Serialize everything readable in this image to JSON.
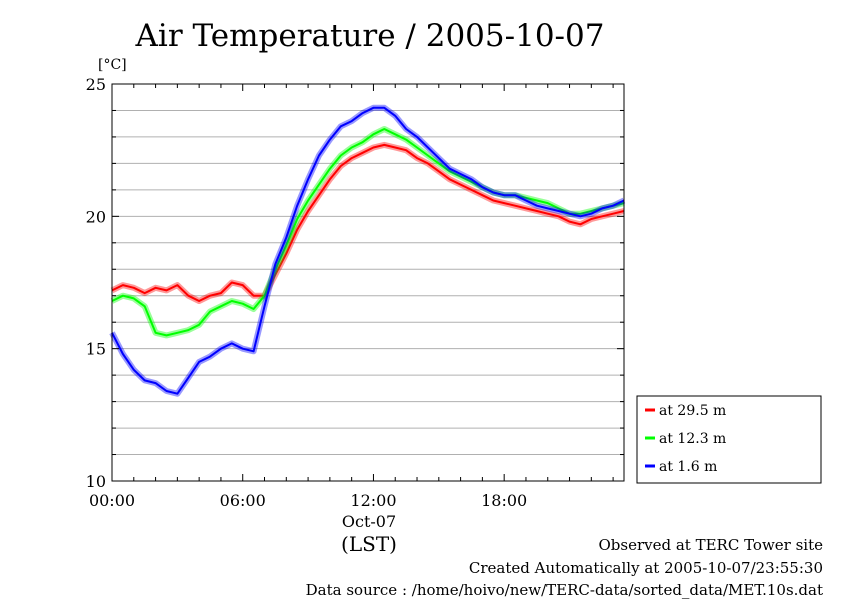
{
  "chart_data": {
    "type": "line",
    "title": "Air Temperature / 2005-10-07",
    "ylabel": "[°C]",
    "ylim": [
      10,
      25
    ],
    "xlim": [
      0,
      23.5
    ],
    "x_ticks": [
      0,
      6,
      12,
      18
    ],
    "x_tick_labels": [
      "00:00",
      "06:00",
      "12:00",
      "18:00"
    ],
    "y_ticks": [
      10,
      15,
      20,
      25
    ],
    "y_tick_labels": [
      "10",
      "15",
      "20",
      "25"
    ],
    "y_grid_step": 1,
    "x_date_label": "Oct-07",
    "x_label": "(LST)",
    "grid": "horizontal",
    "legend_position": "right",
    "x": [
      0,
      0.5,
      1,
      1.5,
      2,
      2.5,
      3,
      3.5,
      4,
      4.5,
      5,
      5.5,
      6,
      6.5,
      7,
      7.5,
      8,
      8.5,
      9,
      9.5,
      10,
      10.5,
      11,
      11.5,
      12,
      12.5,
      13,
      13.5,
      14,
      14.5,
      15,
      15.5,
      16,
      16.5,
      17,
      17.5,
      18,
      18.5,
      19,
      19.5,
      20,
      20.5,
      21,
      21.5,
      22,
      22.5,
      23,
      23.5
    ],
    "series": [
      {
        "name": "at 29.5 m",
        "color": "#ff0000",
        "values": [
          17.2,
          17.4,
          17.3,
          17.1,
          17.3,
          17.2,
          17.4,
          17.0,
          16.8,
          17.0,
          17.1,
          17.5,
          17.4,
          17.0,
          17.0,
          17.8,
          18.6,
          19.5,
          20.2,
          20.8,
          21.4,
          21.9,
          22.2,
          22.4,
          22.6,
          22.7,
          22.6,
          22.5,
          22.2,
          22.0,
          21.7,
          21.4,
          21.2,
          21.0,
          20.8,
          20.6,
          20.5,
          20.4,
          20.3,
          20.2,
          20.1,
          20.0,
          19.8,
          19.7,
          19.9,
          20.0,
          20.1,
          20.2
        ]
      },
      {
        "name": "at 12.3 m",
        "color": "#00ff00",
        "values": [
          16.8,
          17.0,
          16.9,
          16.6,
          15.6,
          15.5,
          15.6,
          15.7,
          15.9,
          16.4,
          16.6,
          16.8,
          16.7,
          16.5,
          17.0,
          18.0,
          18.9,
          19.9,
          20.6,
          21.2,
          21.8,
          22.3,
          22.6,
          22.8,
          23.1,
          23.3,
          23.1,
          22.9,
          22.6,
          22.3,
          22.0,
          21.7,
          21.5,
          21.3,
          21.1,
          20.9,
          20.8,
          20.8,
          20.7,
          20.6,
          20.5,
          20.3,
          20.1,
          20.1,
          20.2,
          20.3,
          20.4,
          20.5
        ]
      },
      {
        "name": "at 1.6 m",
        "color": "#0000ff",
        "values": [
          15.6,
          14.8,
          14.2,
          13.8,
          13.7,
          13.4,
          13.3,
          13.9,
          14.5,
          14.7,
          15.0,
          15.2,
          15.0,
          14.9,
          16.6,
          18.2,
          19.2,
          20.4,
          21.4,
          22.3,
          22.9,
          23.4,
          23.6,
          23.9,
          24.1,
          24.1,
          23.8,
          23.3,
          23.0,
          22.6,
          22.2,
          21.8,
          21.6,
          21.4,
          21.1,
          20.9,
          20.8,
          20.8,
          20.6,
          20.4,
          20.3,
          20.2,
          20.1,
          20.0,
          20.1,
          20.3,
          20.4,
          20.6
        ]
      }
    ]
  },
  "footer": {
    "observed": "Observed at TERC Tower site",
    "created": "Created Automatically at 2005-10-07/23:55:30",
    "source": "Data source : /home/hoivo/new/TERC-data/sorted_data/MET.10s.dat"
  }
}
